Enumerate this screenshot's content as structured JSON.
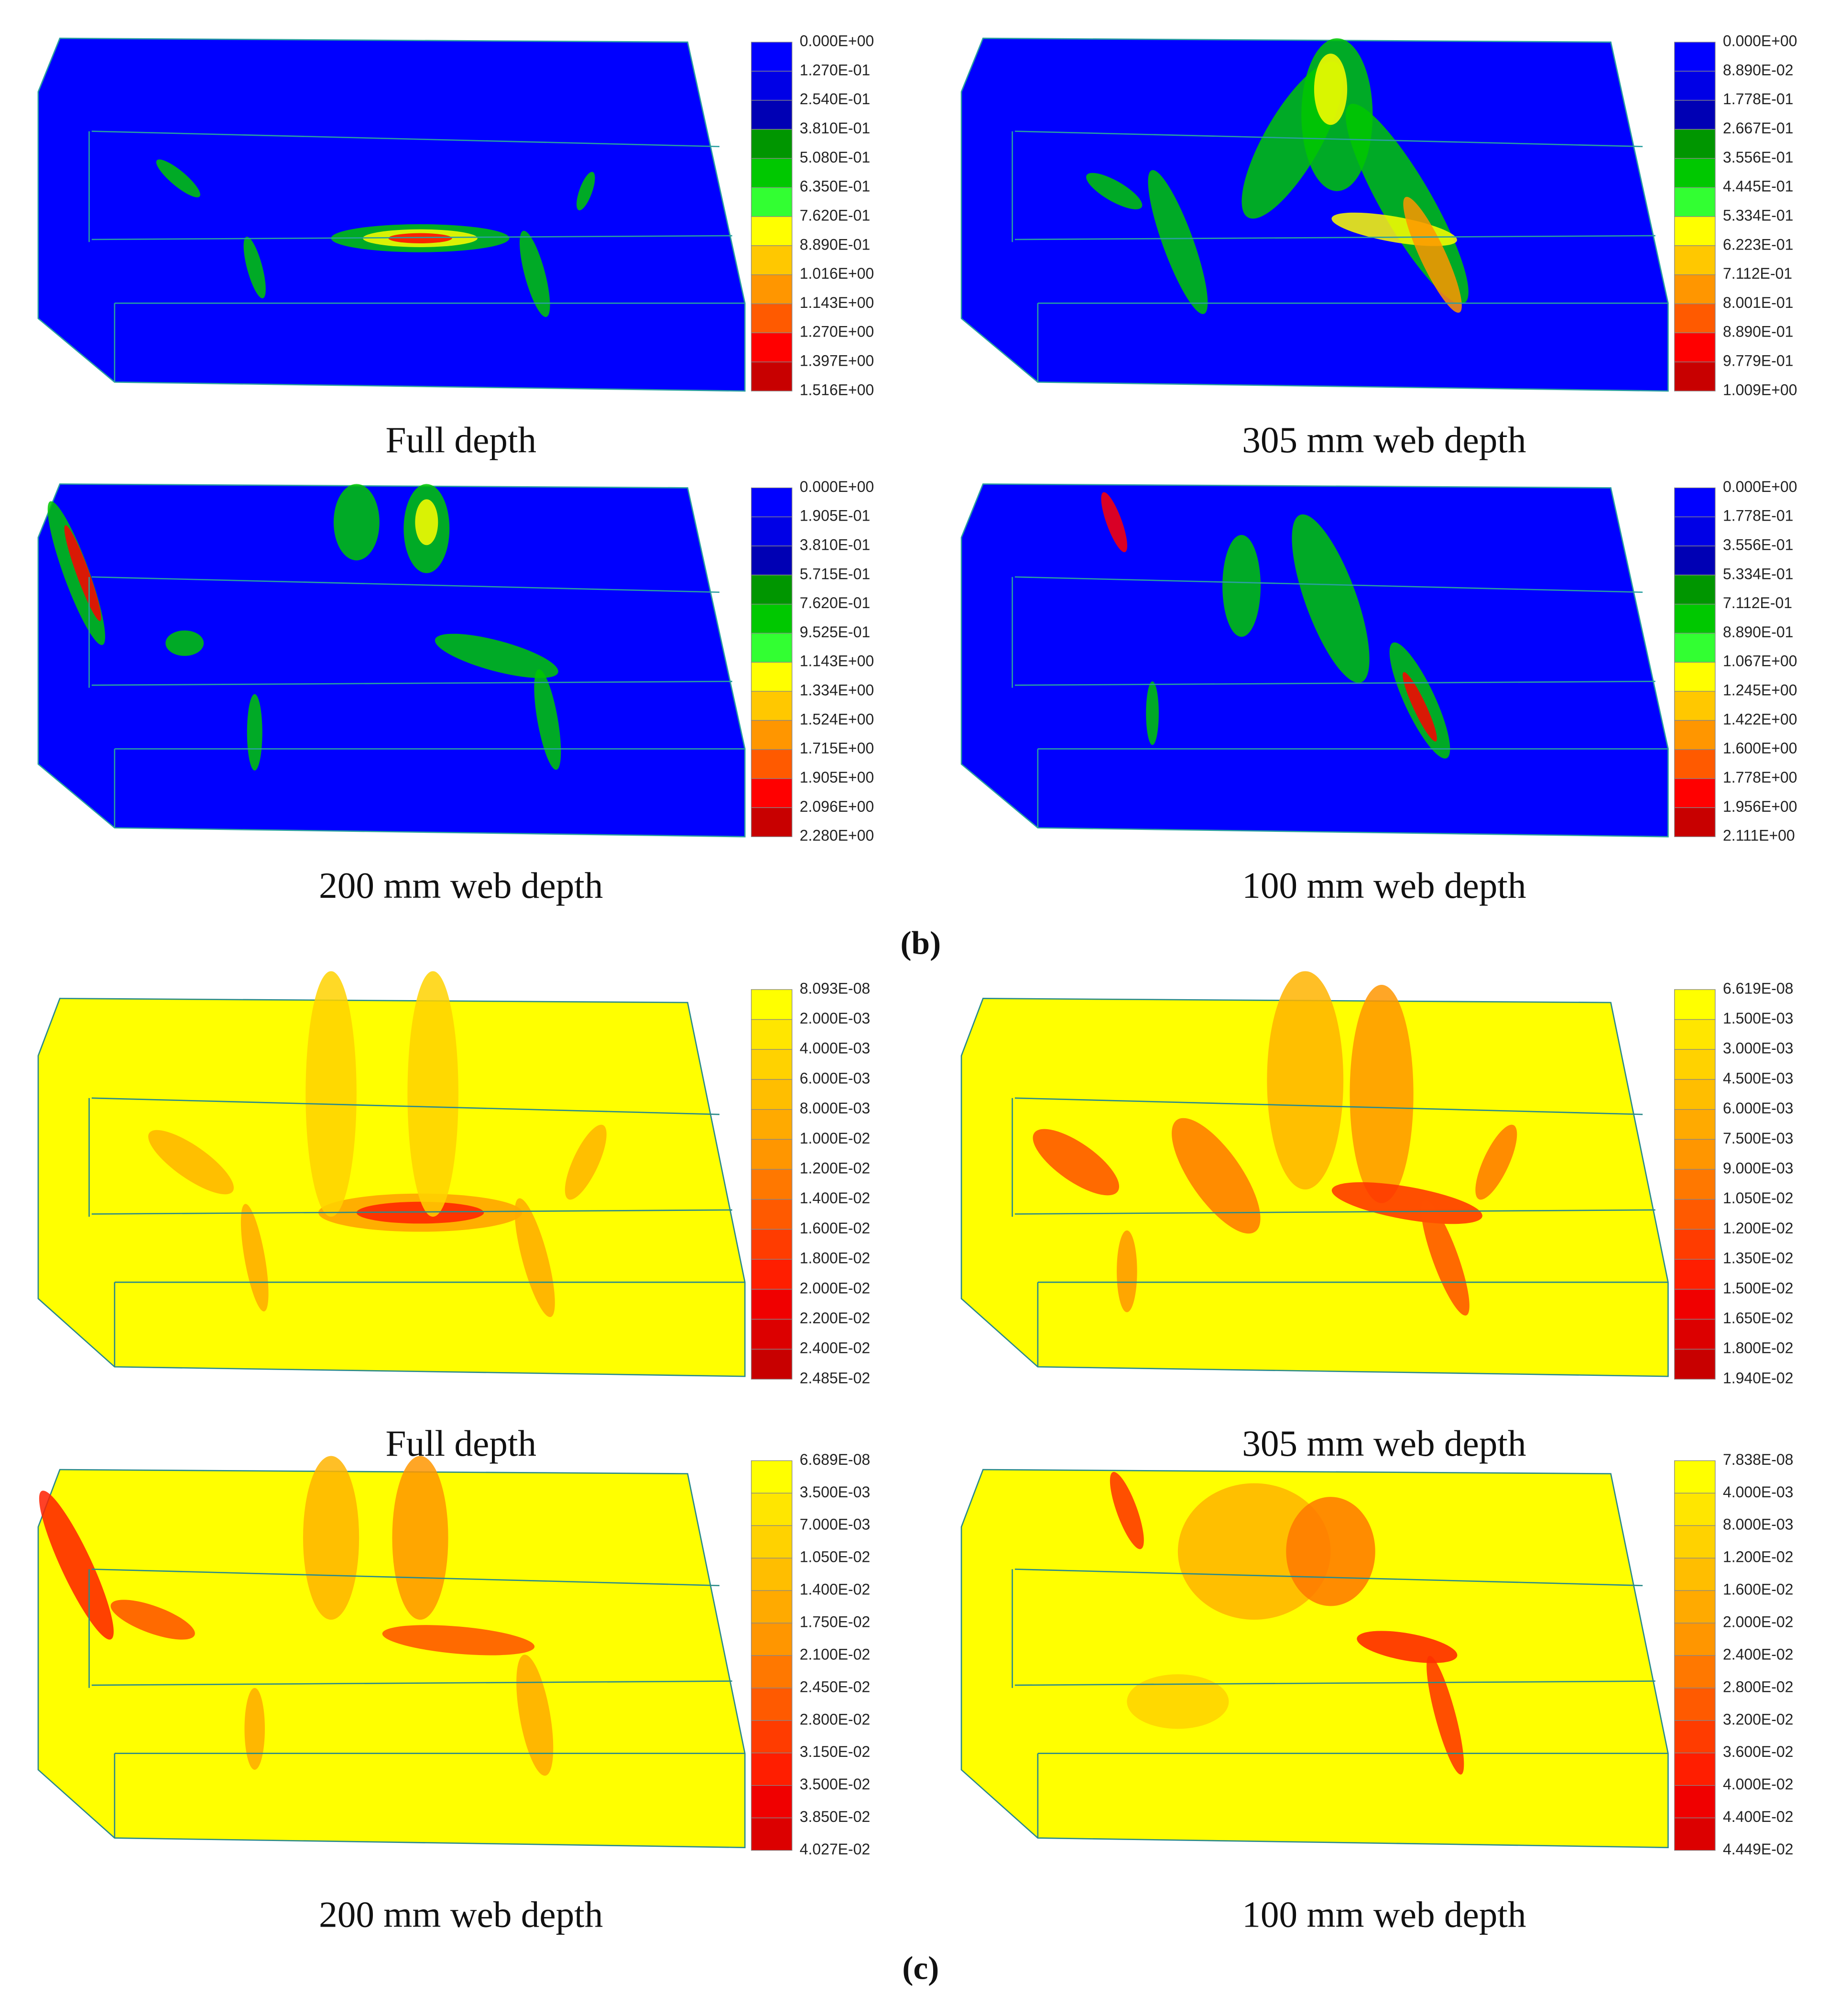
{
  "figure": {
    "panels": [
      {
        "label": "(b)",
        "subfigures": [
          {
            "caption": "Full depth",
            "legend": [
              "0.000E+00",
              "1.270E-01",
              "2.540E-01",
              "3.810E-01",
              "5.080E-01",
              "6.350E-01",
              "7.620E-01",
              "8.890E-01",
              "1.016E+00",
              "1.143E+00",
              "1.270E+00",
              "1.397E+00",
              "1.516E+00"
            ]
          },
          {
            "caption": "305 mm web depth",
            "legend": [
              "0.000E+00",
              "8.890E-02",
              "1.778E-01",
              "2.667E-01",
              "3.556E-01",
              "4.445E-01",
              "5.334E-01",
              "6.223E-01",
              "7.112E-01",
              "8.001E-01",
              "8.890E-01",
              "9.779E-01",
              "1.009E+00"
            ]
          },
          {
            "caption": "200 mm web depth",
            "legend": [
              "0.000E+00",
              "1.905E-01",
              "3.810E-01",
              "5.715E-01",
              "7.620E-01",
              "9.525E-01",
              "1.143E+00",
              "1.334E+00",
              "1.524E+00",
              "1.715E+00",
              "1.905E+00",
              "2.096E+00",
              "2.280E+00"
            ]
          },
          {
            "caption": "100 mm web depth",
            "legend": [
              "0.000E+00",
              "1.778E-01",
              "3.556E-01",
              "5.334E-01",
              "7.112E-01",
              "8.890E-01",
              "1.067E+00",
              "1.245E+00",
              "1.422E+00",
              "1.600E+00",
              "1.778E+00",
              "1.956E+00",
              "2.111E+00"
            ]
          }
        ]
      },
      {
        "label": "(c)",
        "subfigures": [
          {
            "caption": "Full depth",
            "legend": [
              "8.093E-08",
              "2.000E-03",
              "4.000E-03",
              "6.000E-03",
              "8.000E-03",
              "1.000E-02",
              "1.200E-02",
              "1.400E-02",
              "1.600E-02",
              "1.800E-02",
              "2.000E-02",
              "2.200E-02",
              "2.400E-02",
              "2.485E-02"
            ]
          },
          {
            "caption": "305 mm web depth",
            "legend": [
              "6.619E-08",
              "1.500E-03",
              "3.000E-03",
              "4.500E-03",
              "6.000E-03",
              "7.500E-03",
              "9.000E-03",
              "1.050E-02",
              "1.200E-02",
              "1.350E-02",
              "1.500E-02",
              "1.650E-02",
              "1.800E-02",
              "1.940E-02"
            ]
          },
          {
            "caption": "200 mm web depth",
            "legend": [
              "6.689E-08",
              "3.500E-03",
              "7.000E-03",
              "1.050E-02",
              "1.400E-02",
              "1.750E-02",
              "2.100E-02",
              "2.450E-02",
              "2.800E-02",
              "3.150E-02",
              "3.500E-02",
              "3.850E-02",
              "4.027E-02"
            ]
          },
          {
            "caption": "100 mm web depth",
            "legend": [
              "7.838E-08",
              "4.000E-03",
              "8.000E-03",
              "1.200E-02",
              "1.600E-02",
              "2.000E-02",
              "2.400E-02",
              "2.800E-02",
              "3.200E-02",
              "3.600E-02",
              "4.000E-02",
              "4.400E-02",
              "4.449E-02"
            ]
          }
        ]
      }
    ]
  }
}
